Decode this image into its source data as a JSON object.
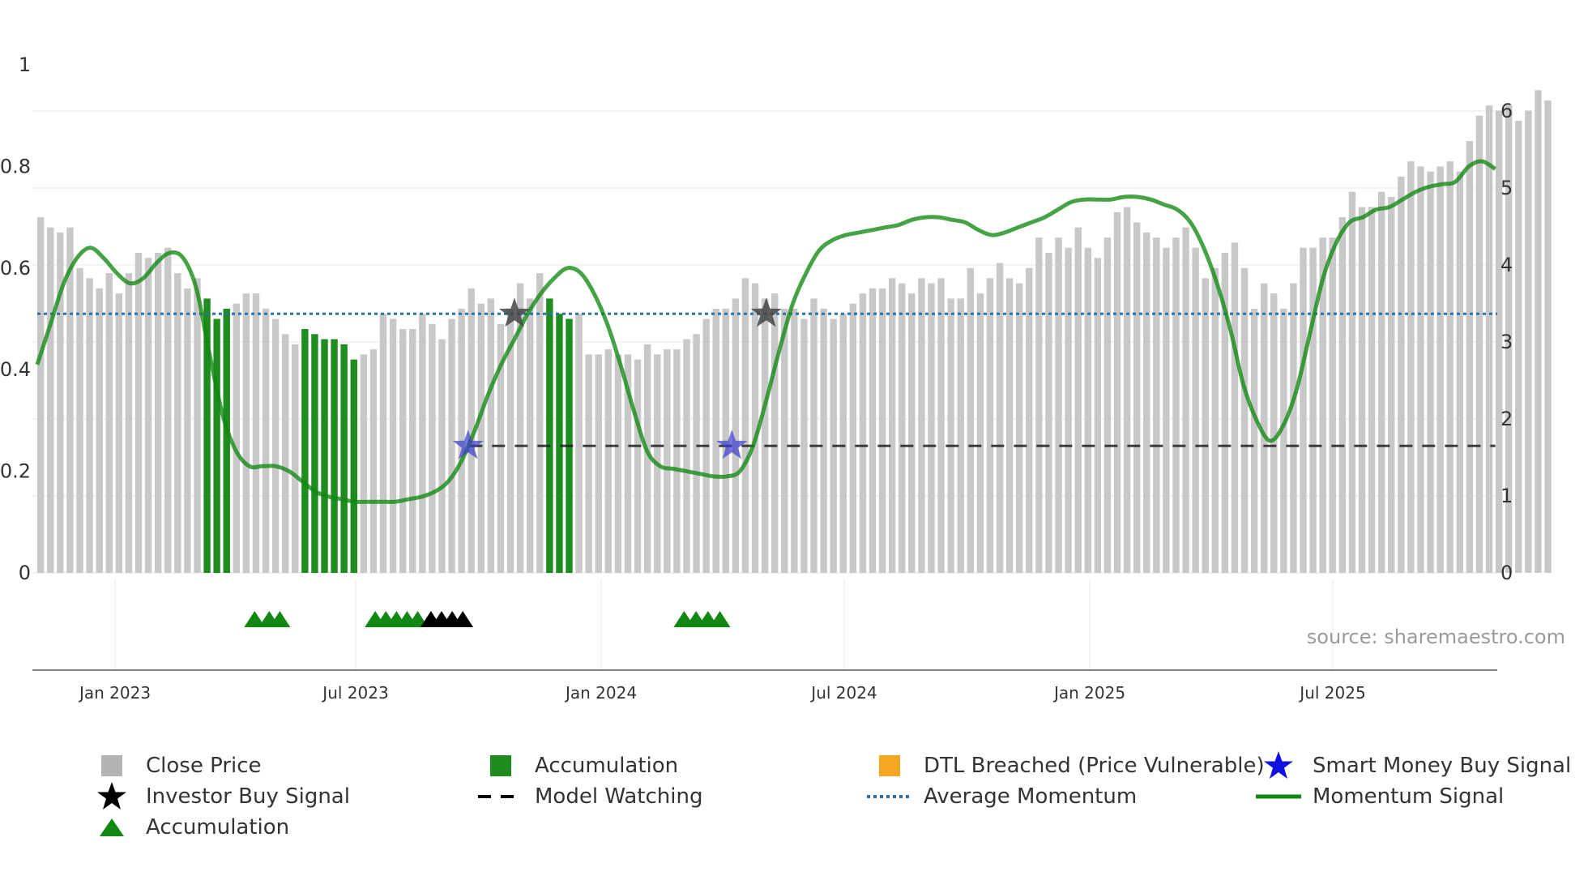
{
  "chart_data": {
    "type": "bar",
    "title": "",
    "source": "source: sharemaestro.com",
    "x_ticks": [
      "Jan 2023",
      "Jul 2023",
      "Jan 2024",
      "Jul 2024",
      "Jan 2025",
      "Jul 2025"
    ],
    "left_axis": {
      "ticks": [
        "0",
        "0.2",
        "0.4",
        "0.6",
        "0.8",
        "1"
      ],
      "ylim": [
        0,
        1
      ]
    },
    "right_axis": {
      "ticks": [
        "0",
        "1",
        "2",
        "3",
        "4",
        "5",
        "6"
      ],
      "ylim": [
        0,
        6.67
      ]
    },
    "bars": {
      "name": "Close Price",
      "color": "#c8c8c8",
      "accumulation_color": "#1e8c1e",
      "values": [
        0.7,
        0.68,
        0.67,
        0.68,
        0.6,
        0.58,
        0.56,
        0.59,
        0.55,
        0.59,
        0.63,
        0.62,
        0.63,
        0.64,
        0.59,
        0.56,
        0.58,
        0.54,
        0.5,
        0.52,
        0.53,
        0.55,
        0.55,
        0.52,
        0.5,
        0.47,
        0.45,
        0.48,
        0.47,
        0.46,
        0.46,
        0.45,
        0.42,
        0.43,
        0.44,
        0.51,
        0.5,
        0.48,
        0.48,
        0.51,
        0.49,
        0.46,
        0.5,
        0.52,
        0.56,
        0.53,
        0.54,
        0.49,
        0.52,
        0.57,
        0.54,
        0.59,
        0.54,
        0.51,
        0.5,
        0.51,
        0.43,
        0.43,
        0.44,
        0.43,
        0.43,
        0.42,
        0.45,
        0.43,
        0.44,
        0.44,
        0.46,
        0.47,
        0.5,
        0.52,
        0.52,
        0.54,
        0.58,
        0.57,
        0.54,
        0.55,
        0.52,
        0.52,
        0.5,
        0.54,
        0.52,
        0.5,
        0.51,
        0.53,
        0.55,
        0.56,
        0.56,
        0.58,
        0.57,
        0.55,
        0.58,
        0.57,
        0.58,
        0.54,
        0.54,
        0.6,
        0.55,
        0.58,
        0.61,
        0.58,
        0.57,
        0.6,
        0.66,
        0.63,
        0.66,
        0.64,
        0.68,
        0.64,
        0.62,
        0.66,
        0.71,
        0.72,
        0.69,
        0.67,
        0.66,
        0.64,
        0.66,
        0.68,
        0.64,
        0.58,
        0.6,
        0.63,
        0.65,
        0.6,
        0.52,
        0.57,
        0.55,
        0.52,
        0.57,
        0.64,
        0.64,
        0.66,
        0.66,
        0.7,
        0.75,
        0.72,
        0.72,
        0.75,
        0.74,
        0.78,
        0.81,
        0.8,
        0.79,
        0.8,
        0.81,
        0.79,
        0.85,
        0.9,
        0.92,
        0.91,
        0.92,
        0.89,
        0.91,
        0.95,
        0.93
      ],
      "accumulation_ranges": [
        [
          17,
          19
        ],
        [
          27,
          32
        ],
        [
          52,
          54
        ]
      ]
    },
    "momentum_signal": {
      "name": "Momentum Signal",
      "color": "#118811",
      "points": [
        [
          0,
          0.41
        ],
        [
          1,
          0.49
        ],
        [
          2,
          0.57
        ],
        [
          3,
          0.62
        ],
        [
          4,
          0.64
        ],
        [
          5,
          0.62
        ],
        [
          6,
          0.59
        ],
        [
          7,
          0.57
        ],
        [
          8,
          0.58
        ],
        [
          9,
          0.61
        ],
        [
          10,
          0.63
        ],
        [
          11,
          0.62
        ],
        [
          12,
          0.56
        ],
        [
          13,
          0.43
        ],
        [
          14,
          0.31
        ],
        [
          15,
          0.24
        ],
        [
          16,
          0.21
        ],
        [
          17,
          0.21
        ],
        [
          18,
          0.21
        ],
        [
          19,
          0.2
        ],
        [
          20,
          0.18
        ],
        [
          21,
          0.16
        ],
        [
          22,
          0.15
        ],
        [
          23,
          0.145
        ],
        [
          24,
          0.14
        ],
        [
          25,
          0.14
        ],
        [
          26,
          0.14
        ],
        [
          27,
          0.14
        ],
        [
          28,
          0.145
        ],
        [
          29,
          0.15
        ],
        [
          30,
          0.16
        ],
        [
          31,
          0.18
        ],
        [
          32,
          0.22
        ],
        [
          33,
          0.28
        ],
        [
          34,
          0.35
        ],
        [
          35,
          0.41
        ],
        [
          36,
          0.46
        ],
        [
          37,
          0.51
        ],
        [
          38,
          0.55
        ],
        [
          39,
          0.58
        ],
        [
          40,
          0.6
        ],
        [
          41,
          0.59
        ],
        [
          42,
          0.55
        ],
        [
          43,
          0.49
        ],
        [
          44,
          0.41
        ],
        [
          45,
          0.32
        ],
        [
          46,
          0.24
        ],
        [
          47,
          0.21
        ],
        [
          48,
          0.205
        ],
        [
          49,
          0.2
        ],
        [
          50,
          0.195
        ],
        [
          51,
          0.19
        ],
        [
          52,
          0.19
        ],
        [
          53,
          0.2
        ],
        [
          54,
          0.25
        ],
        [
          55,
          0.34
        ],
        [
          56,
          0.44
        ],
        [
          57,
          0.53
        ],
        [
          58,
          0.59
        ],
        [
          59,
          0.635
        ],
        [
          60,
          0.655
        ],
        [
          61,
          0.665
        ],
        [
          62,
          0.67
        ],
        [
          63,
          0.675
        ],
        [
          64,
          0.68
        ],
        [
          65,
          0.685
        ],
        [
          66,
          0.695
        ],
        [
          67,
          0.7
        ],
        [
          68,
          0.7
        ],
        [
          69,
          0.695
        ],
        [
          70,
          0.69
        ],
        [
          71,
          0.675
        ],
        [
          72,
          0.665
        ],
        [
          73,
          0.67
        ],
        [
          74,
          0.68
        ],
        [
          75,
          0.69
        ],
        [
          76,
          0.7
        ],
        [
          77,
          0.715
        ],
        [
          78,
          0.73
        ],
        [
          79,
          0.735
        ],
        [
          80,
          0.735
        ],
        [
          81,
          0.735
        ],
        [
          82,
          0.74
        ],
        [
          83,
          0.74
        ],
        [
          84,
          0.735
        ],
        [
          85,
          0.725
        ],
        [
          86,
          0.715
        ],
        [
          87,
          0.69
        ],
        [
          88,
          0.64
        ],
        [
          89,
          0.57
        ],
        [
          90,
          0.48
        ],
        [
          91,
          0.37
        ],
        [
          92,
          0.3
        ],
        [
          93,
          0.26
        ],
        [
          94,
          0.29
        ],
        [
          95,
          0.36
        ],
        [
          96,
          0.47
        ],
        [
          97,
          0.58
        ],
        [
          98,
          0.65
        ],
        [
          99,
          0.69
        ],
        [
          100,
          0.7
        ],
        [
          101,
          0.715
        ],
        [
          102,
          0.72
        ],
        [
          103,
          0.735
        ],
        [
          104,
          0.75
        ],
        [
          105,
          0.76
        ],
        [
          106,
          0.765
        ],
        [
          107,
          0.77
        ],
        [
          108,
          0.8
        ],
        [
          109,
          0.81
        ],
        [
          110,
          0.795
        ]
      ]
    },
    "average_momentum": {
      "name": "Average Momentum",
      "color": "#2c73a8",
      "value": 0.51
    },
    "model_watching": {
      "name": "Model Watching",
      "color": "#222222",
      "value": 0.25,
      "start_x": 32.6,
      "end_x": 110
    },
    "investor_buy_signals": {
      "name": "Investor Buy Signal",
      "color": "#444444",
      "points": [
        [
          36,
          0.51
        ],
        [
          55,
          0.51
        ]
      ]
    },
    "smart_money_buy_signals": {
      "name": "Smart Money Buy Signal",
      "color": "#3a3acc",
      "points": [
        [
          32.5,
          0.25
        ],
        [
          52.4,
          0.25
        ]
      ]
    },
    "accumulation_markers": {
      "name": "Accumulation",
      "colors": [
        "#118811",
        "#000000"
      ],
      "groups": [
        [
          16.4,
          17.5,
          18.3
        ],
        [
          25.5,
          26.3,
          27.1,
          27.9,
          28.7
        ],
        [
          29.7,
          30.5,
          31.3,
          32.1
        ],
        [
          48.8,
          49.7,
          50.6,
          51.5
        ]
      ]
    },
    "legend": [
      {
        "label": "Close Price",
        "symbol": "square",
        "color": "#b4b4b4"
      },
      {
        "label": "Accumulation",
        "symbol": "square",
        "color": "#1e8c1e"
      },
      {
        "label": "DTL Breached (Price Vulnerable)",
        "symbol": "square",
        "color": "#f5a623"
      },
      {
        "label": "Smart Money Buy Signal",
        "symbol": "star",
        "color": "#1010e0"
      },
      {
        "label": "Investor Buy Signal",
        "symbol": "star",
        "color": "#000000"
      },
      {
        "label": "Model Watching",
        "symbol": "dash",
        "color": "#000000"
      },
      {
        "label": "Average Momentum",
        "symbol": "dot",
        "color": "#2c73a8"
      },
      {
        "label": "Momentum Signal",
        "symbol": "line",
        "color": "#118811"
      },
      {
        "label": "Accumulation",
        "symbol": "triangle",
        "color": "#118811"
      }
    ]
  }
}
